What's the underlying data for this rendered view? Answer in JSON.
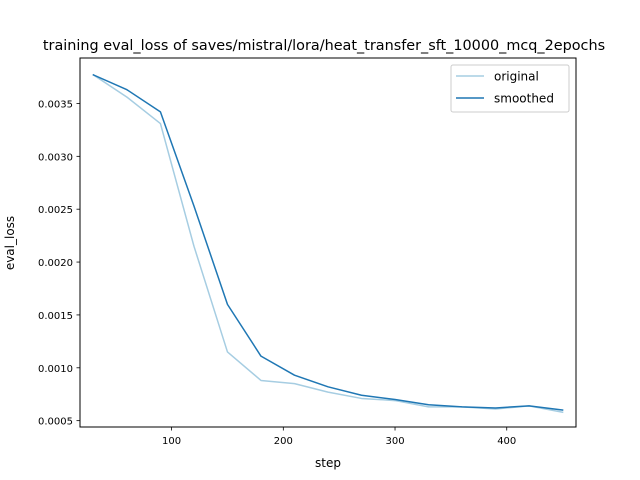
{
  "chart_data": {
    "type": "line",
    "title": "training eval_loss of saves/mistral/lora/heat_transfer_sft_10000_mcq_2epochs",
    "xlabel": "step",
    "ylabel": "eval_loss",
    "xlim": [
      18,
      462
    ],
    "ylim": [
      0.00044,
      0.00393
    ],
    "xticks": [
      100,
      200,
      300,
      400
    ],
    "xtick_labels": [
      "100",
      "200",
      "300",
      "400"
    ],
    "yticks": [
      0.0005,
      0.001,
      0.0015,
      0.002,
      0.0025,
      0.003,
      0.0035
    ],
    "ytick_labels": [
      "0.0005",
      "0.0010",
      "0.0015",
      "0.0020",
      "0.0025",
      "0.0030",
      "0.0035"
    ],
    "grid": false,
    "legend_position": "top-right",
    "x": [
      30,
      60,
      90,
      120,
      150,
      180,
      210,
      240,
      270,
      300,
      330,
      360,
      390,
      420,
      450
    ],
    "series": [
      {
        "name": "original",
        "color": "#a6cde2",
        "values": [
          0.00377,
          0.00356,
          0.00331,
          0.00215,
          0.00115,
          0.00088,
          0.00085,
          0.00077,
          0.00071,
          0.00069,
          0.00063,
          0.00063,
          0.00061,
          0.00064,
          0.00058
        ]
      },
      {
        "name": "smoothed",
        "color": "#1f77b4",
        "values": [
          0.00377,
          0.00363,
          0.00342,
          0.00253,
          0.0016,
          0.00111,
          0.00093,
          0.00082,
          0.00074,
          0.0007,
          0.00065,
          0.00063,
          0.00062,
          0.00064,
          0.0006
        ]
      }
    ]
  }
}
